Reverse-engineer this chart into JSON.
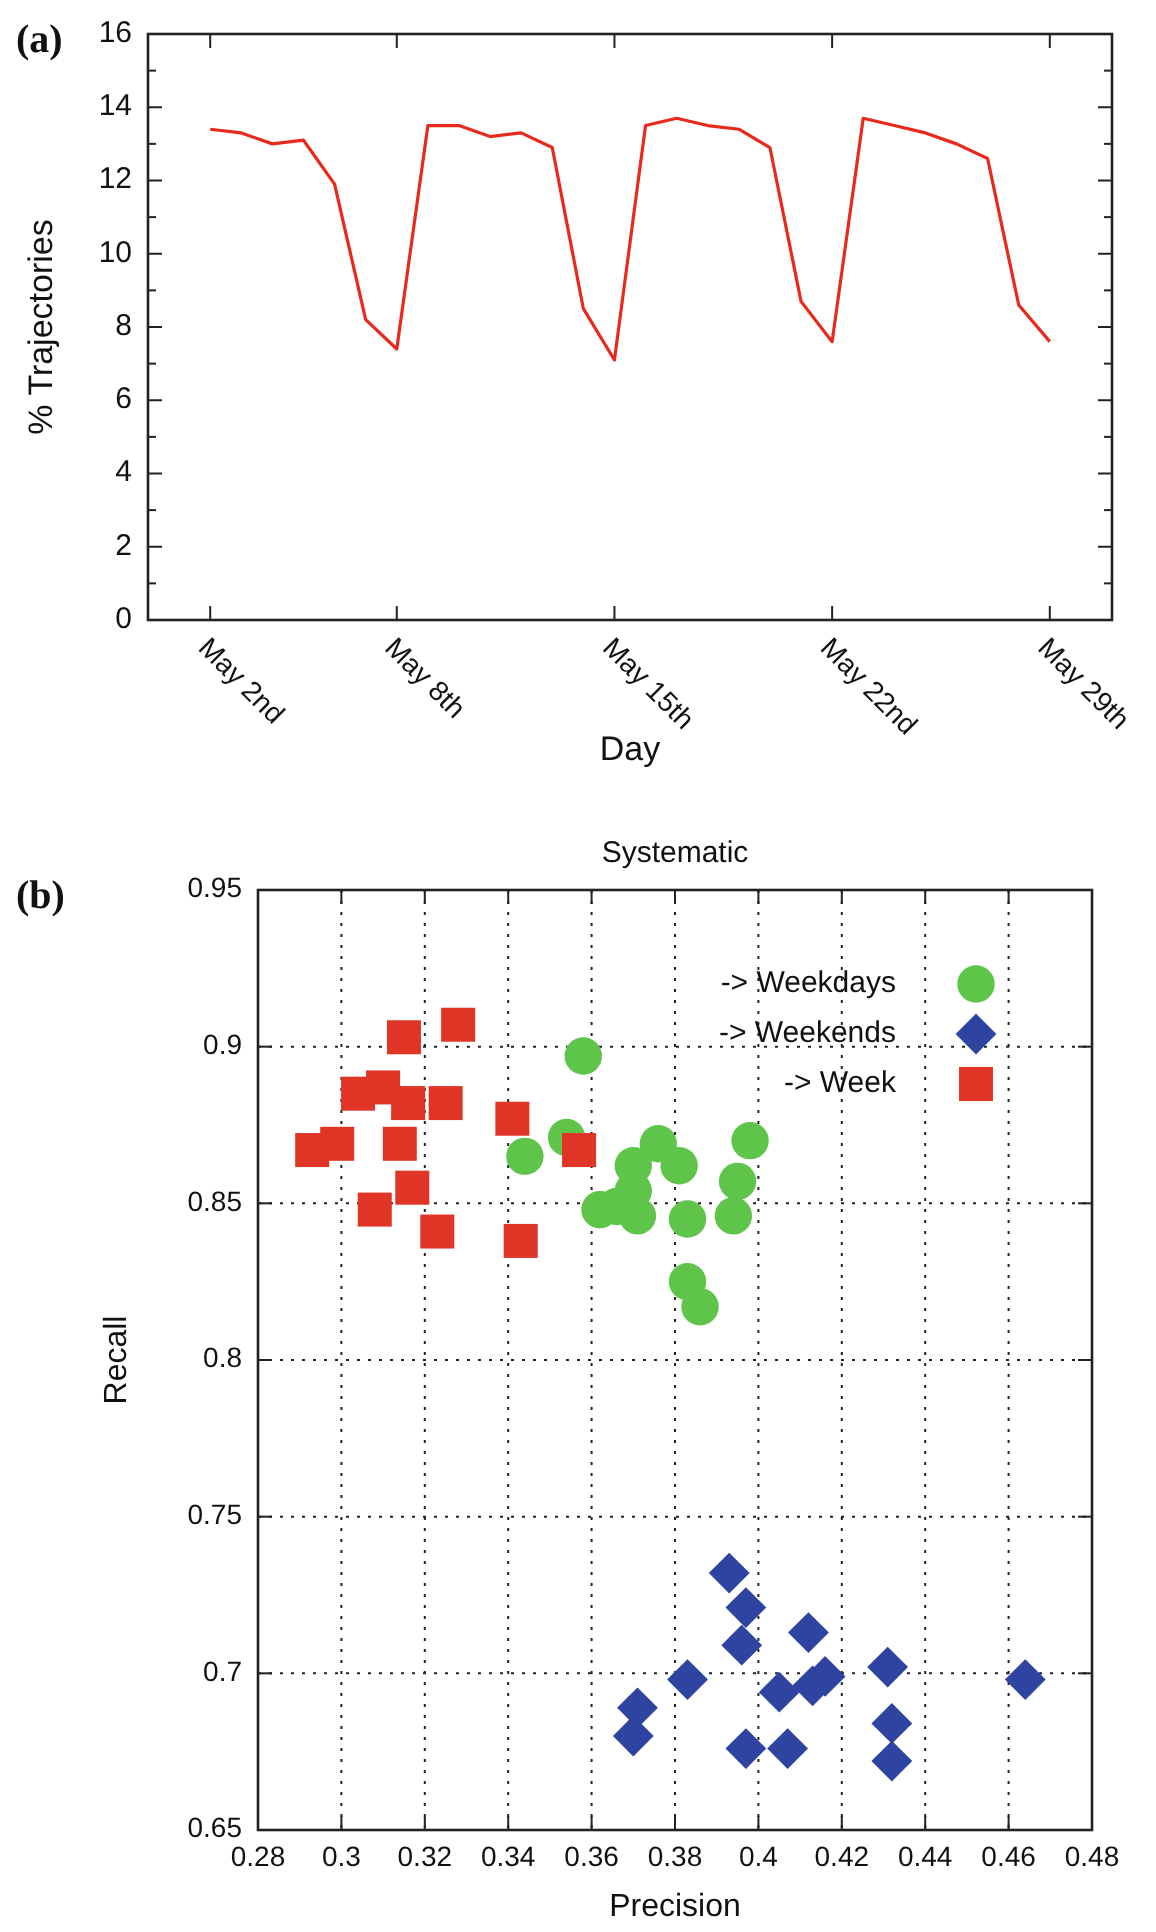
{
  "chart_data": [
    {
      "type": "line",
      "xlabel": "Day",
      "ylabel": "% Trajectories",
      "annotations": [
        "(a)"
      ],
      "x": [
        "--05-02",
        "--05-03",
        "--05-04",
        "--05-05",
        "--05-06",
        "--05-07",
        "--05-08",
        "--05-09",
        "--05-10",
        "--05-11",
        "--05-12",
        "--05-13",
        "--05-14",
        "--05-15",
        "--05-16",
        "--05-17",
        "--05-18",
        "--05-19",
        "--05-20",
        "--05-21",
        "--05-22",
        "--05-23",
        "--05-24",
        "--05-25",
        "--05-26",
        "--05-27",
        "--05-28",
        "--05-29"
      ],
      "series": [
        {
          "color": "#e8291c",
          "values": [
            13.4,
            13.3,
            13.0,
            13.1,
            11.9,
            8.2,
            7.4,
            13.5,
            13.5,
            13.2,
            13.3,
            12.9,
            8.5,
            7.1,
            13.5,
            13.7,
            13.5,
            13.4,
            12.9,
            8.7,
            7.6,
            13.7,
            13.5,
            13.3,
            13.0,
            12.6,
            8.6,
            7.6
          ]
        }
      ],
      "xlim": [
        "--04-30",
        "--05-31"
      ],
      "xticks": [
        {
          "value": "--05-02",
          "label": "May 2nd"
        },
        {
          "value": "--05-08",
          "label": "May 8th"
        },
        {
          "value": "--05-15",
          "label": "May 15th"
        },
        {
          "value": "--05-22",
          "label": "May 22nd"
        },
        {
          "value": "--05-29",
          "label": "May 29th"
        }
      ],
      "ylim": [
        0,
        16
      ],
      "yticks": [
        0,
        {
          "value": 1,
          "label": null
        },
        2,
        {
          "value": 3,
          "label": null
        },
        4,
        {
          "value": 5,
          "label": null
        },
        6,
        {
          "value": 7,
          "label": null
        },
        8,
        {
          "value": 9,
          "label": null
        },
        10,
        {
          "value": 11,
          "label": null
        },
        12,
        {
          "value": 13,
          "label": null
        },
        14,
        {
          "value": 15,
          "label": null
        },
        16
      ],
      "grid": false,
      "legend": false,
      "marker": "none",
      "line_style": "solid"
    },
    {
      "type": "scatter",
      "title": "Systematic",
      "xlabel": "Precision",
      "ylabel": "Recall",
      "annotations": [
        "(b)"
      ],
      "series": [
        {
          "name": "-> Weekdays",
          "color": "#5ec44a",
          "marker": "circle",
          "x": [
            0.358,
            0.354,
            0.344,
            0.376,
            0.37,
            0.381,
            0.398,
            0.395,
            0.394,
            0.362,
            0.366,
            0.37,
            0.371,
            0.383,
            0.383,
            0.386
          ],
          "values": [
            0.897,
            0.871,
            0.865,
            0.869,
            0.862,
            0.862,
            0.87,
            0.857,
            0.846,
            0.848,
            0.849,
            0.854,
            0.846,
            0.845,
            0.825,
            0.817
          ]
        },
        {
          "name": "-> Weekends",
          "color": "#2e44a0",
          "marker": "diamond",
          "x": [
            0.393,
            0.397,
            0.396,
            0.412,
            0.383,
            0.405,
            0.413,
            0.416,
            0.431,
            0.432,
            0.432,
            0.397,
            0.407,
            0.464,
            0.371,
            0.37
          ],
          "values": [
            0.732,
            0.721,
            0.709,
            0.713,
            0.698,
            0.694,
            0.696,
            0.699,
            0.702,
            0.684,
            0.672,
            0.676,
            0.676,
            0.698,
            0.689,
            0.68
          ]
        },
        {
          "name": "-> Week",
          "color": "#e03426",
          "marker": "square",
          "x": [
            0.315,
            0.328,
            0.304,
            0.31,
            0.316,
            0.325,
            0.341,
            0.293,
            0.299,
            0.314,
            0.357,
            0.317,
            0.308,
            0.323,
            0.343
          ],
          "values": [
            0.903,
            0.907,
            0.885,
            0.887,
            0.882,
            0.882,
            0.877,
            0.867,
            0.869,
            0.869,
            0.867,
            0.855,
            0.848,
            0.841,
            0.838
          ]
        }
      ],
      "xlim": [
        0.28,
        0.48
      ],
      "xticks": [
        0.28,
        0.3,
        0.32,
        0.34,
        0.36,
        0.38,
        0.4,
        0.42,
        0.44,
        0.46,
        0.48
      ],
      "ylim": [
        0.65,
        0.95
      ],
      "yticks": [
        0.65,
        0.7,
        0.75,
        0.8,
        0.85,
        0.9,
        0.95
      ],
      "grid": true,
      "legend": "top right"
    }
  ]
}
